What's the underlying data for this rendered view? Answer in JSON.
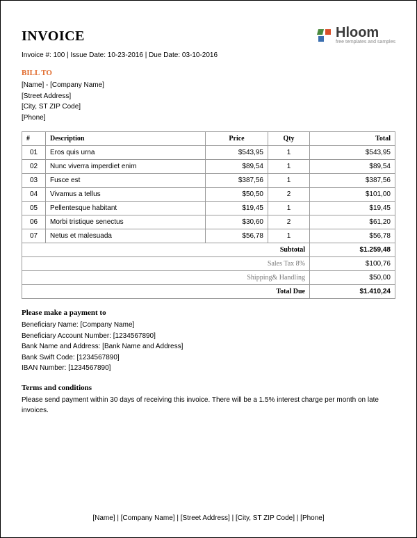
{
  "logo": {
    "text": "Hloom",
    "tagline": "free templates and samples",
    "colors": {
      "tile1": "#4a8a3f",
      "tile2": "#d94f2a",
      "tile3": "#3b6fb0",
      "text": "#3a3a3a",
      "sub": "#888888"
    }
  },
  "title": "INVOICE",
  "meta": {
    "line": "Invoice #: 100 | Issue Date: 10-23-2016 | Due Date: 03-10-2016"
  },
  "bill_to": {
    "heading": "BILL TO",
    "heading_color": "#e06a2b",
    "lines": [
      "[Name] - [Company Name]",
      "[Street Address]",
      "[City, ST ZIP Code]",
      "[Phone]"
    ]
  },
  "table": {
    "columns": [
      "#",
      "Description",
      "Price",
      "Qty",
      "Total"
    ],
    "col_align": [
      "center",
      "left",
      "center",
      "center",
      "right"
    ],
    "border_color": "#999999",
    "header_font": "Georgia",
    "rows": [
      {
        "num": "01",
        "desc": "Eros quis urna",
        "price": "$543,95",
        "qty": "1",
        "total": "$543,95"
      },
      {
        "num": "02",
        "desc": "Nunc viverra imperdiet enim",
        "price": "$89,54",
        "qty": "1",
        "total": "$89,54"
      },
      {
        "num": "03",
        "desc": "Fusce est",
        "price": "$387,56",
        "qty": "1",
        "total": "$387,56"
      },
      {
        "num": "04",
        "desc": "Vivamus a tellus",
        "price": "$50,50",
        "qty": "2",
        "total": "$101,00"
      },
      {
        "num": "05",
        "desc": "Pellentesque habitant",
        "price": "$19,45",
        "qty": "1",
        "total": "$19,45"
      },
      {
        "num": "06",
        "desc": "Morbi tristique senectus",
        "price": "$30,60",
        "qty": "2",
        "total": "$61,20"
      },
      {
        "num": "07",
        "desc": "Netus et malesuada",
        "price": "$56,78",
        "qty": "1",
        "total": "$56,78"
      }
    ],
    "summary": [
      {
        "label": "Subtotal",
        "value": "$1.259,48",
        "bold": true
      },
      {
        "label": "Sales Tax 8%",
        "value": "$100,76",
        "muted": true
      },
      {
        "label": "Shipping& Handling",
        "value": "$50,00",
        "muted": true
      },
      {
        "label": "Total Due",
        "value": "$1.410,24",
        "bold": true
      }
    ]
  },
  "payment": {
    "heading": "Please make a payment to",
    "lines": [
      "Beneficiary Name: [Company Name]",
      "Beneficiary Account Number: [1234567890]",
      "Bank Name and Address: [Bank Name and Address]",
      "Bank Swift Code: [1234567890]",
      "IBAN Number: [1234567890]"
    ]
  },
  "terms": {
    "heading": "Terms and conditions",
    "text": "Please send payment within 30 days of receiving this invoice. There will be a 1.5% interest charge per month on late invoices."
  },
  "footer": "[Name] | [Company Name] | [Street Address] | [City, ST ZIP Code] | [Phone]",
  "style": {
    "page_bg": "#ffffff",
    "body_font": "Arial",
    "heading_font": "Georgia",
    "font_size_body": 10,
    "font_size_title": 20
  }
}
